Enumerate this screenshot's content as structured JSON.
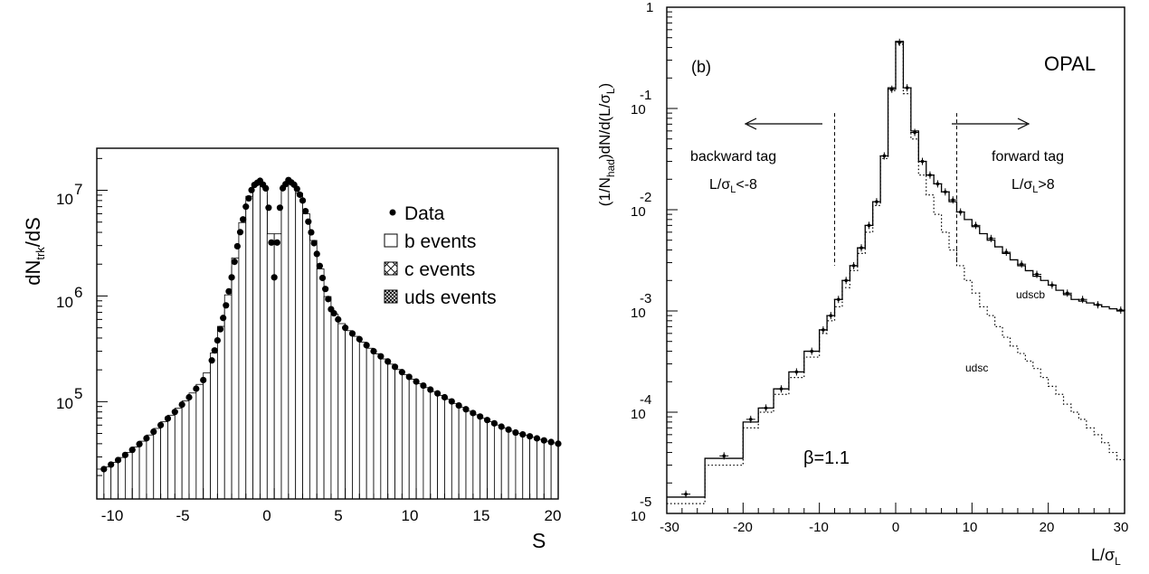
{
  "chart_data": [
    {
      "panel": "left",
      "type": "bar",
      "subtype": "stacked-histogram-with-points",
      "xlabel": "S",
      "ylabel": "dN",
      "ylabel_sub": "trk",
      "ylabel_tail": "/dS",
      "x_range": [
        -12.5,
        20
      ],
      "y_range": [
        12000,
        25000000
      ],
      "y_scale": "log",
      "x_ticks": [
        "-10",
        "-5",
        "0",
        "5",
        "10",
        "15",
        "20"
      ],
      "y_tick_labels": [
        {
          "base": "10",
          "exp": "5",
          "value": 100000
        },
        {
          "base": "10",
          "exp": "6",
          "value": 1000000
        },
        {
          "base": "10",
          "exp": "7",
          "value": 10000000
        }
      ],
      "legend": {
        "placement": "top-right",
        "entries": [
          {
            "symbol": "dot",
            "label": "Data"
          },
          {
            "symbol": "open-box",
            "label": "b events"
          },
          {
            "symbol": "cross-hatch",
            "label": "c events"
          },
          {
            "symbol": "dense-hatch",
            "label": "uds events"
          }
        ]
      },
      "bin_width": 0.5,
      "total": {
        "x": [
          -12.0,
          -11.0,
          -10.0,
          -9.0,
          -8.0,
          -7.0,
          -6.0,
          -5.0,
          -4.5,
          -4.0,
          -3.5,
          -3.0,
          -2.5,
          -2.0,
          -1.5,
          -1.0,
          -0.5,
          0.0,
          0.5,
          1.0,
          1.5,
          2.0,
          2.5,
          3.0,
          3.5,
          4.0,
          4.5,
          5.0,
          6.0,
          7.0,
          8.0,
          9.0,
          10.0,
          11.0,
          12.0,
          13.0,
          14.0,
          15.0,
          16.0,
          17.0,
          18.0,
          19.0,
          20.0
        ],
        "y": [
          23000,
          28000,
          35000,
          45000,
          60000,
          80000,
          110000,
          160000,
          220000,
          380000,
          700000,
          1500000,
          3500000,
          7000000,
          11000000,
          12300000,
          10000000,
          1500000,
          10000000,
          12500000,
          11000000,
          8000000,
          4500000,
          2500000,
          1300000,
          750000,
          600000,
          500000,
          390000,
          300000,
          240000,
          190000,
          155000,
          130000,
          110000,
          92000,
          78000,
          67000,
          58000,
          51000,
          47000,
          43000,
          40000
        ]
      },
      "uds": {
        "x": [
          -12.0,
          -11.0,
          -10.0,
          -9.0,
          -8.0,
          -7.0,
          -6.0,
          -5.0,
          -4.5,
          -4.0,
          -3.5,
          -3.0,
          -2.5,
          -2.0,
          -1.5,
          -1.0,
          -0.5,
          0.0,
          0.5,
          1.0,
          1.5,
          2.0,
          2.5,
          3.0,
          3.5,
          4.0,
          4.5,
          5.0,
          6.0,
          7.0,
          8.0,
          9.0,
          10.0,
          11.0,
          12.0
        ],
        "y": [
          15000,
          16000,
          18000,
          22000,
          28000,
          40000,
          60000,
          100000,
          150000,
          250000,
          500000,
          1000000,
          2500000,
          5000000,
          8500000,
          10000000,
          8000000,
          1200000,
          8000000,
          10000000,
          8500000,
          5500000,
          2500000,
          1200000,
          550000,
          280000,
          180000,
          110000,
          70000,
          45000,
          30000,
          22000,
          17000,
          14000,
          12500
        ]
      },
      "c": {
        "x": [
          -12.0,
          -11.0,
          -10.0,
          -9.0,
          -8.0,
          -7.0,
          -6.0,
          -5.0,
          -4.5,
          -4.0,
          -3.5,
          -3.0,
          -2.5,
          -2.0,
          -1.5,
          -1.0,
          -0.5,
          0.0,
          0.5,
          1.0,
          1.5,
          2.0,
          2.5,
          3.0,
          3.5,
          4.0,
          4.5,
          5.0,
          6.0,
          7.0,
          8.0,
          9.0,
          10.0,
          11.0,
          12.0,
          13.0,
          14.0,
          15.0,
          16.0,
          17.0
        ],
        "y": [
          17000,
          19000,
          23000,
          28000,
          36000,
          50000,
          75000,
          120000,
          180000,
          300000,
          580000,
          1200000,
          3000000,
          6000000,
          9800000,
          11200000,
          9000000,
          1300000,
          9000000,
          11300000,
          9800000,
          6800000,
          3500000,
          1800000,
          900000,
          480000,
          320000,
          220000,
          150000,
          100000,
          68000,
          48000,
          36000,
          28000,
          22000,
          18000,
          15000,
          13500,
          12500,
          12100
        ]
      }
    },
    {
      "panel": "right",
      "type": "line",
      "subtype": "step-histogram",
      "xlabel": "L/σ",
      "xlabel_sub": "L",
      "ylabel": "(1/N",
      "ylabel_sub": "had",
      "ylabel_tail": ")dN/d(L/σ",
      "ylabel_sub2": "L",
      "ylabel_end": ")",
      "x_range": [
        -30,
        30
      ],
      "y_range": [
        1e-05,
        1
      ],
      "y_scale": "log",
      "x_ticks": [
        "-30",
        "-20",
        "-10",
        "0",
        "10",
        "20",
        "30"
      ],
      "y_tick_labels": [
        {
          "base": "1",
          "exp": "",
          "value": 1
        },
        {
          "base": "10",
          "exp": "-1",
          "value": 0.1
        },
        {
          "base": "10",
          "exp": "-2",
          "value": 0.01
        },
        {
          "base": "10",
          "exp": "-3",
          "value": 0.001
        },
        {
          "base": "10",
          "exp": "-4",
          "value": 0.0001
        },
        {
          "base": "10",
          "exp": "-5",
          "value": 1e-05
        }
      ],
      "panel_label": "(b)",
      "experiment": "OPAL",
      "beta_label": "β=1.1",
      "cut_lines": [
        -8,
        8
      ],
      "backward_label": "backward tag",
      "backward_cut": "L/σ",
      "backward_cut_sub": "L",
      "backward_cut_tail": "<-8",
      "forward_label": "forward tag",
      "forward_cut": "L/σ",
      "forward_cut_sub": "L",
      "forward_cut_tail": ">8",
      "series": [
        {
          "name": "udscb",
          "style": "solid"
        },
        {
          "name": "udsc",
          "style": "dotted"
        }
      ],
      "bin_edges": [
        -30,
        -25,
        -20,
        -18,
        -16,
        -14,
        -12,
        -10,
        -9,
        -8,
        -7,
        -6,
        -5,
        -4,
        -3,
        -2,
        -1,
        0,
        1,
        2,
        3,
        4,
        5,
        6,
        7,
        8,
        9,
        10,
        11,
        12,
        13,
        14,
        15,
        16,
        17,
        18,
        19,
        20,
        21,
        22,
        23,
        24,
        25,
        26,
        27,
        28,
        29,
        30
      ],
      "udscb": [
        1.45e-05,
        3.5e-05,
        8e-05,
        0.00011,
        0.00017,
        0.00025,
        0.0004,
        0.00065,
        0.0009,
        0.0013,
        0.002,
        0.0028,
        0.0042,
        0.007,
        0.012,
        0.034,
        0.16,
        0.46,
        0.16,
        0.06,
        0.03,
        0.022,
        0.018,
        0.015,
        0.012,
        0.0095,
        0.008,
        0.0068,
        0.0058,
        0.005,
        0.0043,
        0.0037,
        0.0032,
        0.0028,
        0.0025,
        0.0022,
        0.002,
        0.0018,
        0.0016,
        0.00145,
        0.0013,
        0.00125,
        0.0012,
        0.00115,
        0.0011,
        0.00105,
        0.001
      ],
      "udsc": [
        1.25e-05,
        3e-05,
        7e-05,
        0.0001,
        0.00015,
        0.00022,
        0.00035,
        0.0006,
        0.0008,
        0.0011,
        0.0017,
        0.0025,
        0.0037,
        0.006,
        0.011,
        0.032,
        0.15,
        0.43,
        0.14,
        0.05,
        0.022,
        0.014,
        0.009,
        0.006,
        0.004,
        0.0028,
        0.002,
        0.0015,
        0.0011,
        0.0009,
        0.0007,
        0.00055,
        0.00045,
        0.00038,
        0.00032,
        0.00027,
        0.00022,
        0.00018,
        0.00015,
        0.00012,
        0.0001,
        8.5e-05,
        7e-05,
        6e-05,
        5e-05,
        4e-05,
        3.4e-05
      ],
      "data_points": {
        "x": [
          -27.5,
          -22.5,
          -19,
          -17,
          -15,
          -13,
          -11,
          -9.5,
          -8.5,
          -7.5,
          -6.5,
          -5.5,
          -4.5,
          -3.5,
          -2.5,
          -1.5,
          -0.5,
          0.5,
          1.5,
          2.5,
          3.5,
          4.5,
          5.5,
          6.5,
          7.5,
          8.5,
          10.5,
          12.5,
          14.5,
          16.5,
          18.5,
          20.5,
          22.5,
          24.5,
          26.5,
          29.5
        ],
        "y": [
          1.55e-05,
          3.7e-05,
          8.5e-05,
          0.00011,
          0.00017,
          0.00025,
          0.0004,
          0.00065,
          0.0009,
          0.0013,
          0.002,
          0.0028,
          0.0042,
          0.007,
          0.012,
          0.034,
          0.155,
          0.45,
          0.16,
          0.058,
          0.03,
          0.022,
          0.018,
          0.015,
          0.0125,
          0.0095,
          0.007,
          0.0052,
          0.0038,
          0.0029,
          0.0023,
          0.0018,
          0.0015,
          0.0013,
          0.00115,
          0.00102
        ]
      }
    }
  ]
}
